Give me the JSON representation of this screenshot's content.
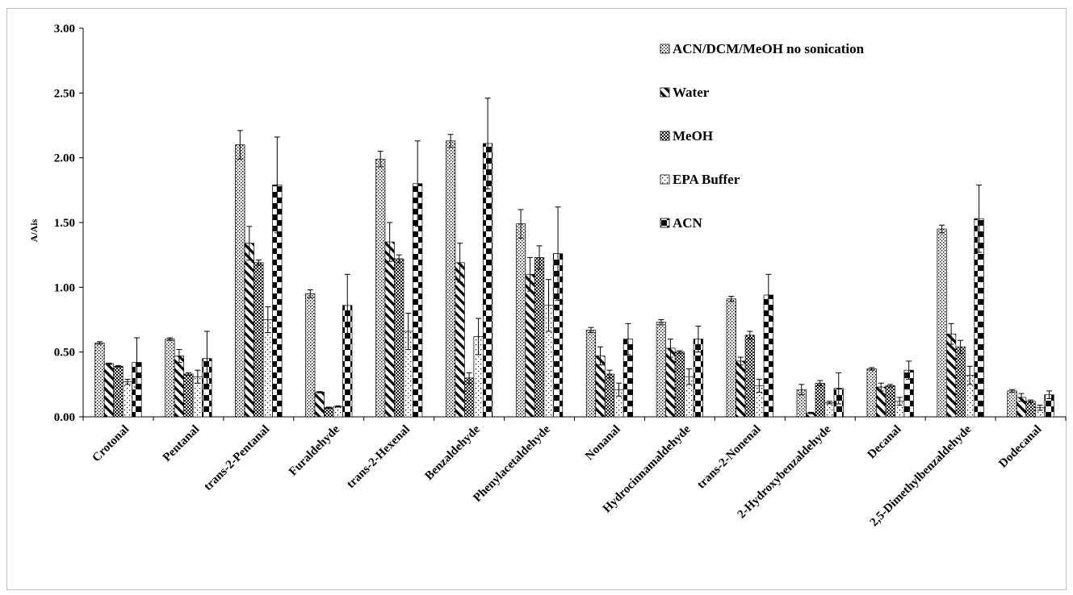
{
  "chart_data": {
    "type": "bar",
    "title": "",
    "xlabel": "",
    "ylabel": "A/Ais",
    "ylim": [
      0,
      3.0
    ],
    "yticks": [
      "0.00",
      "0.50",
      "1.00",
      "1.50",
      "2.00",
      "2.50",
      "3.00"
    ],
    "grid": false,
    "legend_position": "top-right",
    "categories": [
      "Crotonal",
      "Pentanal",
      "trans-2-Pentanal",
      "Furaldehyde",
      "trans-2-Hexenal",
      "Benzaldehyde",
      "Phenylacetaldehyde",
      "Nonanal",
      "Hydrocinnamaldehyde",
      "trans-2-Nonenal",
      "2-Hydroxybenzaldehyde",
      "Decanal",
      "2,5-Dimethylbenzaldehyde",
      "Dodecanal"
    ],
    "series": [
      {
        "name": "ACN/DCM/MeOH no sonication",
        "pattern": "dots",
        "values": [
          0.57,
          0.6,
          2.1,
          0.95,
          1.99,
          2.13,
          1.49,
          0.67,
          0.73,
          0.91,
          0.21,
          0.37,
          1.45,
          0.2
        ],
        "errors": [
          0.01,
          0.01,
          0.11,
          0.03,
          0.06,
          0.05,
          0.11,
          0.02,
          0.02,
          0.02,
          0.04,
          0.01,
          0.03,
          0.01
        ]
      },
      {
        "name": "Water",
        "pattern": "diagonal",
        "values": [
          0.41,
          0.47,
          1.34,
          0.19,
          1.35,
          1.19,
          1.1,
          0.47,
          0.53,
          0.43,
          0.03,
          0.23,
          0.64,
          0.15
        ],
        "errors": [
          0.005,
          0.05,
          0.13,
          0.005,
          0.15,
          0.15,
          0.13,
          0.07,
          0.07,
          0.03,
          0.005,
          0.03,
          0.08,
          0.03
        ]
      },
      {
        "name": "MeOH",
        "pattern": "checker",
        "values": [
          0.39,
          0.33,
          1.19,
          0.07,
          1.22,
          0.3,
          1.23,
          0.33,
          0.5,
          0.63,
          0.26,
          0.24,
          0.54,
          0.12
        ],
        "errors": [
          0.005,
          0.01,
          0.02,
          0.005,
          0.03,
          0.04,
          0.09,
          0.03,
          0.01,
          0.03,
          0.02,
          0.01,
          0.05,
          0.01
        ]
      },
      {
        "name": "EPA Buffer",
        "pattern": "sparse",
        "values": [
          0.27,
          0.31,
          0.75,
          0.08,
          0.66,
          0.62,
          0.86,
          0.21,
          0.31,
          0.24,
          0.11,
          0.12,
          0.32,
          0.07
        ],
        "errors": [
          0.02,
          0.05,
          0.1,
          0.005,
          0.14,
          0.14,
          0.2,
          0.05,
          0.06,
          0.05,
          0.01,
          0.03,
          0.07,
          0.02
        ]
      },
      {
        "name": "ACN",
        "pattern": "bigchecker",
        "values": [
          0.42,
          0.45,
          1.79,
          0.86,
          1.8,
          2.11,
          1.26,
          0.6,
          0.6,
          0.94,
          0.22,
          0.36,
          1.53,
          0.17
        ],
        "errors": [
          0.19,
          0.21,
          0.37,
          0.24,
          0.33,
          0.35,
          0.36,
          0.12,
          0.1,
          0.16,
          0.12,
          0.07,
          0.26,
          0.03
        ]
      }
    ]
  }
}
